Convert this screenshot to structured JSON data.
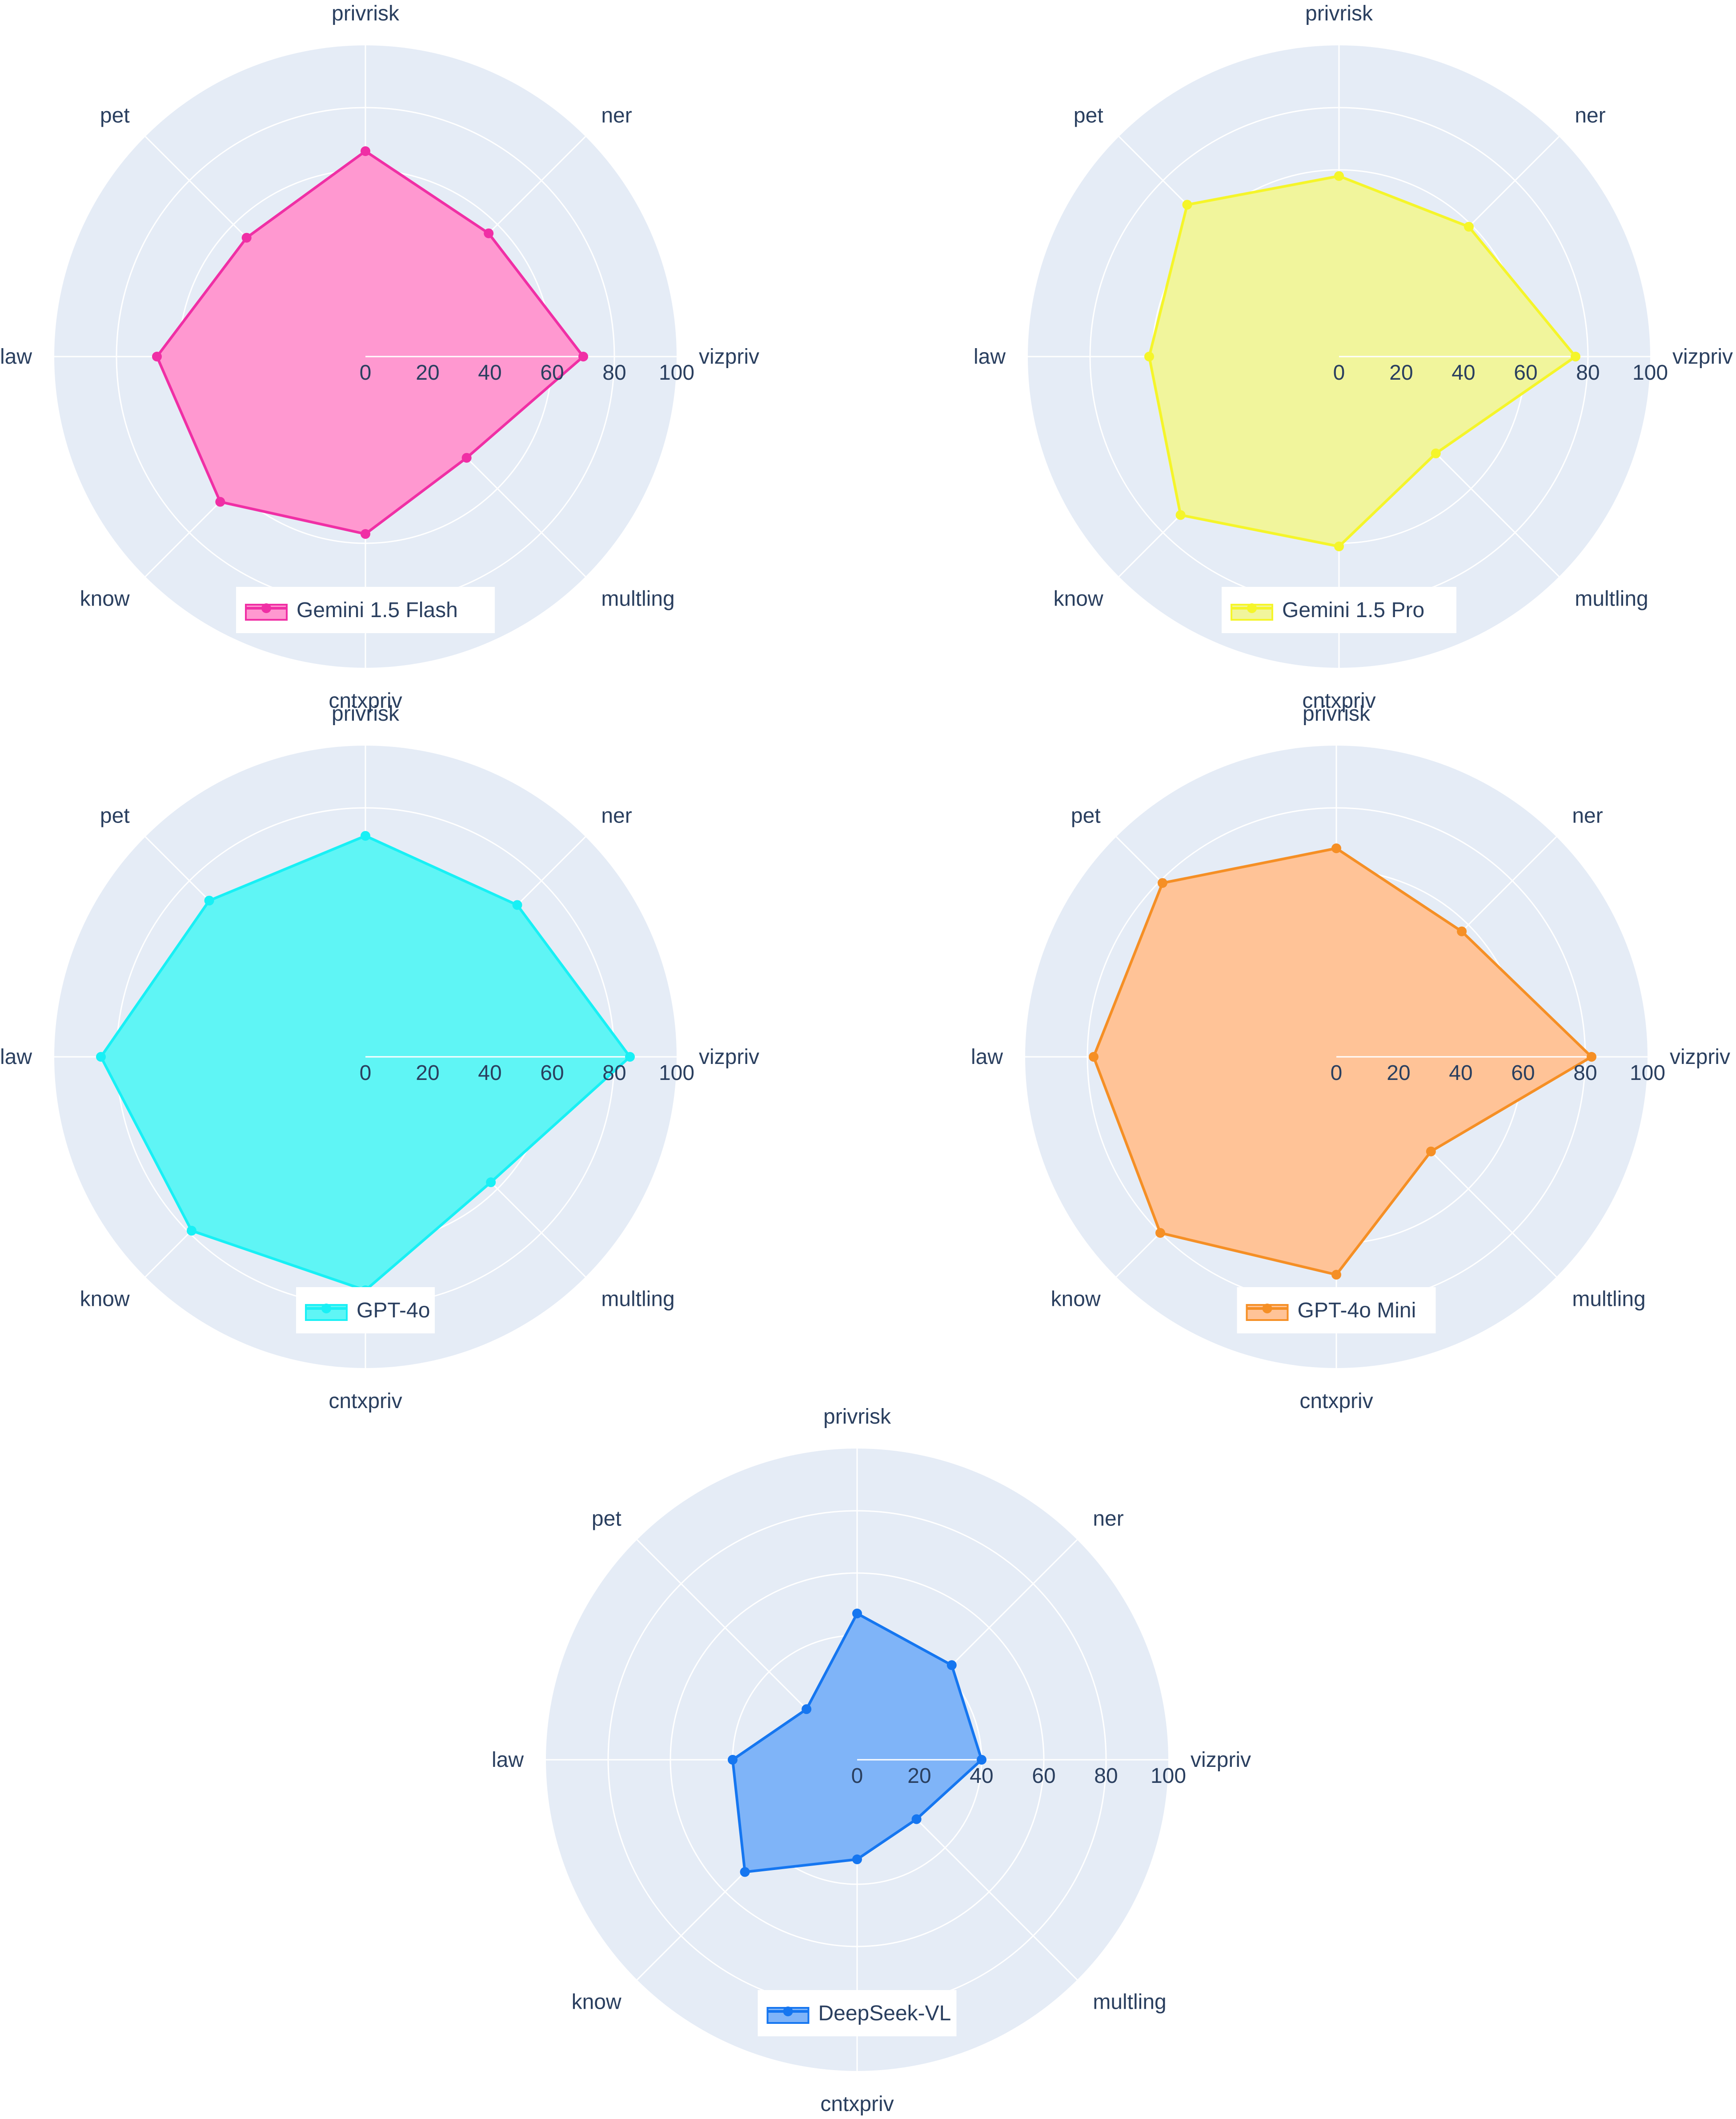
{
  "chart_data": [
    {
      "type": "radar",
      "axes": [
        "privrisk",
        "ner",
        "vizpriv",
        "multling",
        "cntxpriv",
        "know",
        "law",
        "pet"
      ],
      "radial_ticks": [
        "0",
        "20",
        "40",
        "60",
        "80",
        "100"
      ],
      "range": [
        0,
        100
      ],
      "series": [
        {
          "name": "Gemini 1.5 Flash",
          "values": [
            66,
            56,
            70,
            46,
            57,
            66,
            67,
            54
          ]
        }
      ],
      "color": "#f02fa5",
      "fill": "#ff98d0",
      "legend_position": "bottom-center"
    },
    {
      "type": "radar",
      "axes": [
        "privrisk",
        "ner",
        "vizpriv",
        "multling",
        "cntxpriv",
        "know",
        "law",
        "pet"
      ],
      "radial_ticks": [
        "0",
        "20",
        "40",
        "60",
        "80",
        "100"
      ],
      "range": [
        0,
        100
      ],
      "series": [
        {
          "name": "Gemini 1.5 Pro",
          "values": [
            58,
            59,
            76,
            44,
            61,
            72,
            61,
            69
          ]
        }
      ],
      "color": "#f5f52a",
      "fill": "#f1f59c",
      "legend_position": "bottom-center"
    },
    {
      "type": "radar",
      "axes": [
        "privrisk",
        "ner",
        "vizpriv",
        "multling",
        "cntxpriv",
        "know",
        "law",
        "pet"
      ],
      "radial_ticks": [
        "0",
        "20",
        "40",
        "60",
        "80",
        "100"
      ],
      "range": [
        0,
        100
      ],
      "series": [
        {
          "name": "GPT-4o",
          "values": [
            71,
            69,
            85,
            57,
            75,
            79,
            85,
            71
          ]
        }
      ],
      "color": "#18f0f5",
      "fill": "#5ff5f5",
      "legend_position": "bottom-center"
    },
    {
      "type": "radar",
      "axes": [
        "privrisk",
        "ner",
        "vizpriv",
        "multling",
        "cntxpriv",
        "know",
        "law",
        "pet"
      ],
      "radial_ticks": [
        "0",
        "20",
        "40",
        "60",
        "80",
        "100"
      ],
      "range": [
        0,
        100
      ],
      "series": [
        {
          "name": "GPT-4o Mini",
          "values": [
            67,
            57,
            82,
            43,
            70,
            80,
            78,
            79
          ]
        }
      ],
      "color": "#f58f25",
      "fill": "#ffc397",
      "legend_position": "bottom-center"
    },
    {
      "type": "radar",
      "axes": [
        "privrisk",
        "ner",
        "vizpriv",
        "multling",
        "cntxpriv",
        "know",
        "law",
        "pet"
      ],
      "radial_ticks": [
        "0",
        "20",
        "40",
        "60",
        "80",
        "100"
      ],
      "range": [
        0,
        100
      ],
      "series": [
        {
          "name": "DeepSeek-VL",
          "values": [
            47,
            43,
            40,
            27,
            32,
            51,
            40,
            23
          ]
        }
      ],
      "color": "#1576f0",
      "fill": "#7fb4f8",
      "legend_position": "bottom-center"
    }
  ]
}
